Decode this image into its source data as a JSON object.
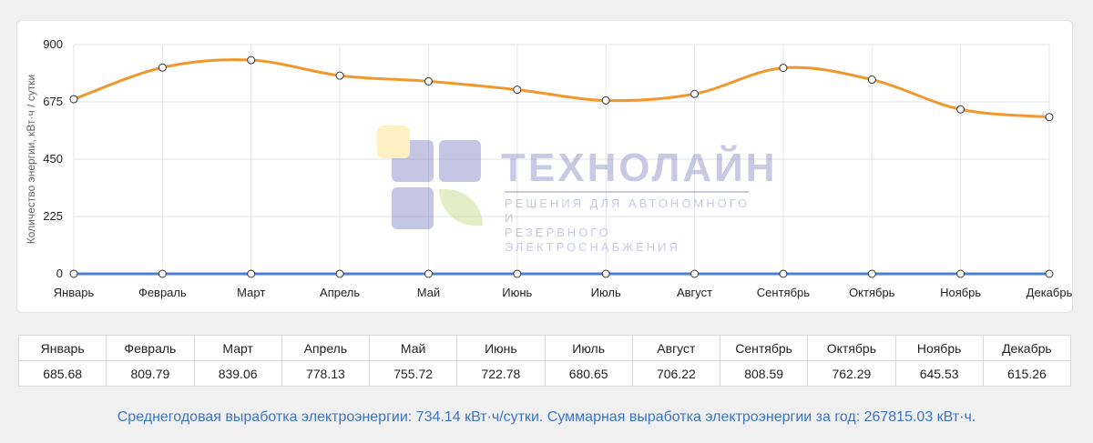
{
  "chart_data": {
    "type": "line",
    "categories": [
      "Январь",
      "Февраль",
      "Март",
      "Апрель",
      "Май",
      "Июнь",
      "Июль",
      "Август",
      "Сентябрь",
      "Октябрь",
      "Ноябрь",
      "Декабрь"
    ],
    "series": [
      {
        "color": "#f0982e",
        "values": [
          685.68,
          809.79,
          839.06,
          778.13,
          755.72,
          722.78,
          680.65,
          706.22,
          808.59,
          762.29,
          645.53,
          615.26
        ]
      },
      {
        "color": "#4a7fd4",
        "values": [
          0,
          0,
          0,
          0,
          0,
          0,
          0,
          0,
          0,
          0,
          0,
          0
        ]
      }
    ],
    "ylabel": "Количество энергии, кВт·ч / сутки",
    "ylim": [
      0,
      900
    ],
    "yticks": [
      "0",
      "225",
      "450",
      "675",
      "900"
    ],
    "grid": true
  },
  "watermark": {
    "title": "ТЕХНОЛАЙН",
    "subtitle_line1": "РЕШЕНИЯ ДЛЯ АВТОНОМНОГО И",
    "subtitle_line2": "РЕЗЕРВНОГО ЭЛЕКТРОСНАБЖЕНИЯ"
  },
  "table": {
    "months": [
      "Январь",
      "Февраль",
      "Март",
      "Апрель",
      "Май",
      "Июнь",
      "Июль",
      "Август",
      "Сентябрь",
      "Октябрь",
      "Ноябрь",
      "Декабрь"
    ],
    "values": [
      "685.68",
      "809.79",
      "839.06",
      "778.13",
      "755.72",
      "722.78",
      "680.65",
      "706.22",
      "808.59",
      "762.29",
      "645.53",
      "615.26"
    ]
  },
  "summary": "Среднегодовая выработка электроэнергии: 734.14 кВт·ч/сутки. Суммарная выработка электроэнергии за год: 267815.03 кВт·ч."
}
